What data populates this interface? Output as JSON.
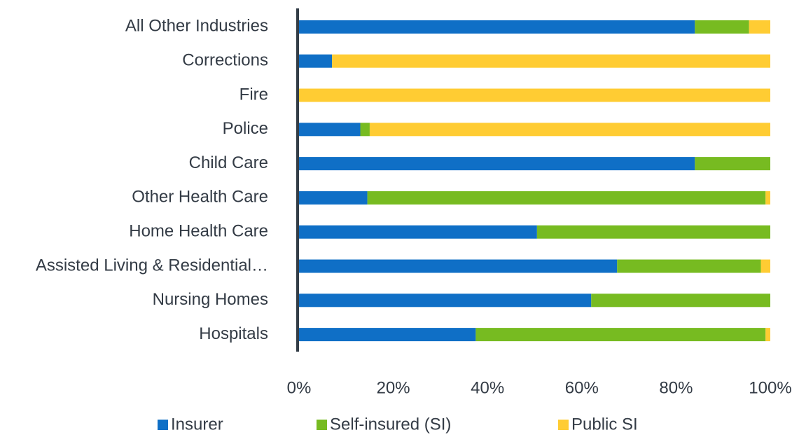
{
  "chart_data": {
    "type": "stacked_bar_horizontal",
    "categories": [
      "All Other Industries",
      "Corrections",
      "Fire",
      "Police",
      "Child Care",
      "Other Health Care",
      "Home Health Care",
      "Assisted Living & Residential…",
      "Nursing Homes",
      "Hospitals"
    ],
    "series": [
      {
        "name": "Insurer",
        "color": "#0f6fc6",
        "values": [
          84,
          7,
          0,
          13,
          84,
          14.5,
          50.5,
          67.5,
          62,
          37.5
        ]
      },
      {
        "name": "Self-insured (SI)",
        "color": "#77bb21",
        "values": [
          11.5,
          0,
          0,
          2,
          16,
          84.5,
          49.5,
          30.5,
          38,
          61.5
        ]
      },
      {
        "name": "Public SI",
        "color": "#ffcc33",
        "values": [
          4.5,
          93,
          100,
          85,
          0,
          1,
          0,
          2,
          0,
          1
        ]
      }
    ],
    "xlim": [
      0,
      100
    ],
    "xticks": [
      {
        "value": 0,
        "label": "0%"
      },
      {
        "value": 20,
        "label": "20%"
      },
      {
        "value": 40,
        "label": "40%"
      },
      {
        "value": 60,
        "label": "60%"
      },
      {
        "value": 80,
        "label": "80%"
      },
      {
        "value": 100,
        "label": "100%"
      }
    ],
    "grid": false,
    "legend": "bottom"
  }
}
